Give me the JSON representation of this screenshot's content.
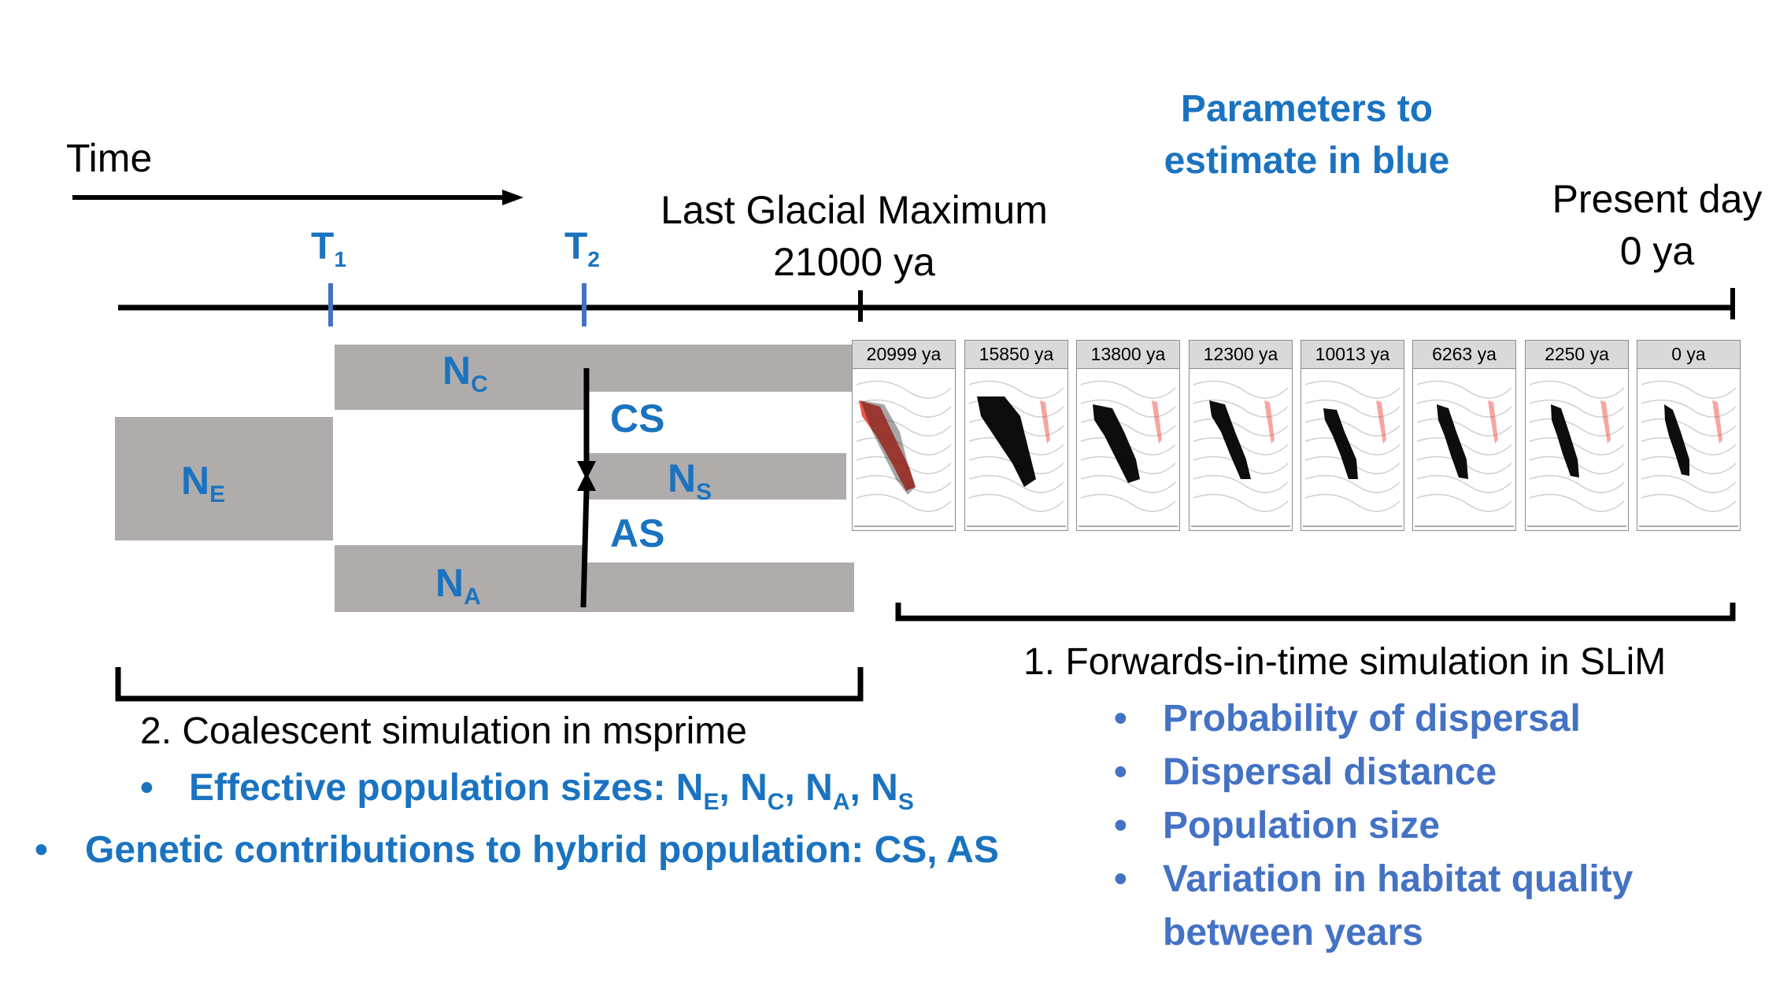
{
  "parameters_note": [
    "Parameters to",
    "estimate in blue"
  ],
  "time_label": "Time",
  "lgm": {
    "title": "Last Glacial Maximum",
    "value": "21000 ya"
  },
  "present": {
    "title": "Present day",
    "value": "0 ya"
  },
  "time_markers": [
    {
      "letter": "T",
      "sub": "1"
    },
    {
      "letter": "T",
      "sub": "2"
    }
  ],
  "populations": {
    "ne": {
      "letter": "N",
      "sub": "E"
    },
    "nc": {
      "letter": "N",
      "sub": "C"
    },
    "ns": {
      "letter": "N",
      "sub": "S"
    },
    "na": {
      "letter": "N",
      "sub": "A"
    },
    "cs": "CS",
    "as": "AS"
  },
  "panels": [
    "20999 ya",
    "15850 ya",
    "13800 ya",
    "12300 ya",
    "10013 ya",
    "6263 ya",
    "2250 ya",
    "0 ya"
  ],
  "slim": {
    "heading": "1. Forwards-in-time simulation in SLiM",
    "items": [
      "Probability of dispersal",
      "Dispersal distance",
      "Population size",
      "Variation in habitat quality",
      "between years"
    ]
  },
  "msprime": {
    "heading": "2. Coalescent simulation in msprime",
    "items": [
      "Effective population sizes: N",
      "E",
      ", N",
      "C",
      ", N",
      "A",
      ", N",
      "S",
      "Genetic contributions to hybrid population: CS, AS"
    ]
  },
  "colors": {
    "blue": "#1a73c0",
    "param_blue": "#4472c4",
    "gray": "#b0acab",
    "presence": "#000000",
    "habitat": "#e8392a"
  },
  "bullet_glyph": "•"
}
